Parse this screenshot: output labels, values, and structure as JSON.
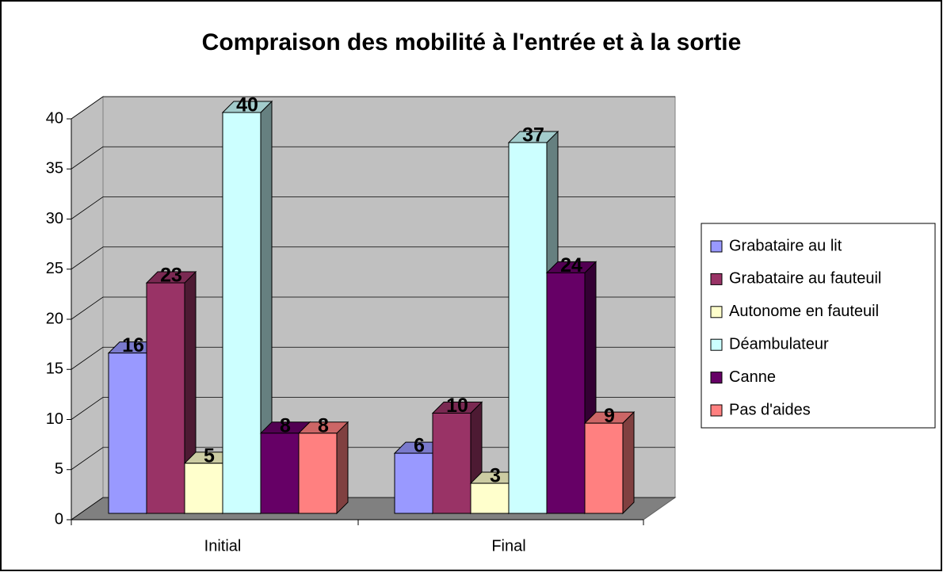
{
  "chart_data": {
    "type": "bar",
    "title": "Compraison des mobilité à l'entrée et à la sortie",
    "categories": [
      "Initial",
      "Final"
    ],
    "series": [
      {
        "name": "Grabataire au lit",
        "color": "#9999ff",
        "values": [
          16,
          6
        ]
      },
      {
        "name": "Grabataire au fauteuil",
        "color": "#993366",
        "values": [
          23,
          10
        ]
      },
      {
        "name": "Autonome en fauteuil",
        "color": "#ffffcc",
        "values": [
          5,
          3
        ]
      },
      {
        "name": "Déambulateur",
        "color": "#ccffff",
        "values": [
          40,
          37
        ]
      },
      {
        "name": "Canne",
        "color": "#660066",
        "values": [
          8,
          24
        ]
      },
      {
        "name": "Pas d'aides",
        "color": "#ff8080",
        "values": [
          8,
          9
        ]
      }
    ],
    "ylim": [
      0,
      40
    ],
    "yticks": [
      0,
      5,
      10,
      15,
      20,
      25,
      30,
      35,
      40
    ],
    "grid": true,
    "legend": "right"
  }
}
